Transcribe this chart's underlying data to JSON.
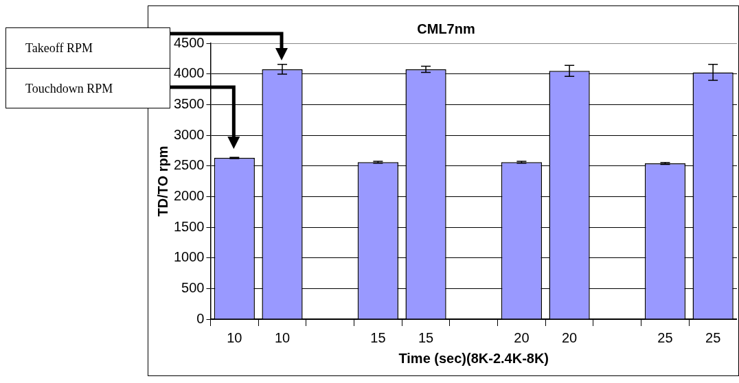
{
  "chart_data": {
    "type": "bar",
    "title": "CML7nm",
    "xlabel": "Time (sec)(8K-2.4K-8K)",
    "ylabel": "TD/TO rpm",
    "categories": [
      "10",
      "10",
      null,
      "15",
      "15",
      null,
      "20",
      "20",
      null,
      "25",
      "25"
    ],
    "values": [
      2630,
      4075,
      null,
      2560,
      4075,
      null,
      2560,
      4050,
      null,
      2540,
      4025
    ],
    "errors": [
      10,
      80,
      null,
      15,
      50,
      null,
      15,
      90,
      null,
      15,
      130
    ],
    "color": "#9999ff",
    "ylim": [
      0,
      4500
    ],
    "yticks": [
      0,
      500,
      1000,
      1500,
      2000,
      2500,
      3000,
      3500,
      4000,
      4500
    ],
    "grid": "y",
    "annotations": [
      "Takeoff RPM",
      "Touchdown RPM"
    ]
  }
}
